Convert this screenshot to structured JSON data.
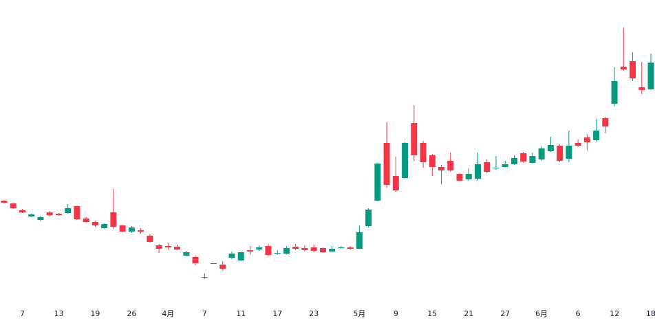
{
  "chart_data": {
    "type": "candlestick",
    "categories": [
      null,
      null,
      "7",
      null,
      null,
      null,
      "13",
      null,
      null,
      null,
      "19",
      null,
      null,
      null,
      "26",
      null,
      null,
      null,
      "4月",
      null,
      null,
      null,
      "7",
      null,
      null,
      null,
      "11",
      null,
      null,
      null,
      "17",
      null,
      null,
      null,
      "23",
      null,
      null,
      null,
      null,
      "5月",
      null,
      null,
      null,
      "9",
      null,
      null,
      null,
      "15",
      null,
      null,
      null,
      "21",
      null,
      null,
      null,
      "27",
      null,
      null,
      null,
      "6月",
      null,
      null,
      null,
      "6",
      null,
      null,
      null,
      "12",
      null,
      null,
      null,
      "18"
    ],
    "open": [
      178,
      174,
      164,
      155,
      150,
      161,
      159,
      160,
      170,
      152,
      147,
      138,
      161,
      142,
      133,
      135,
      127,
      113,
      112,
      111,
      98,
      96,
      66,
      86,
      85,
      95,
      91,
      106,
      107,
      112,
      101,
      101,
      111,
      109,
      110,
      109,
      104,
      109,
      110,
      108,
      141,
      178,
      262,
      214,
      211,
      291,
      262,
      244,
      227,
      236,
      217,
      209,
      210,
      234,
      225,
      227,
      231,
      247,
      233,
      238,
      250,
      258,
      239,
      262,
      270,
      266,
      298,
      319,
      373,
      381,
      343,
      340
    ],
    "high": [
      179,
      175,
      166,
      159,
      156,
      163,
      160,
      173,
      170,
      154,
      149,
      145,
      195,
      143,
      141,
      138,
      129,
      115,
      117,
      114,
      105,
      98,
      72,
      87,
      90,
      104,
      104,
      112,
      113,
      115,
      106,
      112,
      115,
      113,
      114,
      110,
      112,
      112,
      112,
      142,
      167,
      233,
      292,
      242,
      263,
      317,
      265,
      246,
      230,
      248,
      218,
      225,
      248,
      238,
      243,
      236,
      244,
      249,
      248,
      257,
      271,
      260,
      280,
      267,
      275,
      297,
      300,
      372,
      430,
      394,
      380,
      392
    ],
    "low": [
      174,
      166,
      160,
      154,
      148,
      155,
      156,
      159,
      150,
      146,
      140,
      137,
      137,
      132,
      131,
      130,
      117,
      102,
      107,
      106,
      97,
      84,
      64,
      86,
      76,
      93,
      90,
      99,
      105,
      97,
      99,
      100,
      106,
      104,
      103,
      102,
      103,
      108,
      106,
      108,
      139,
      177,
      197,
      191,
      210,
      236,
      226,
      214,
      202,
      220,
      206,
      207,
      207,
      218,
      223,
      226,
      230,
      233,
      232,
      236,
      249,
      234,
      234,
      256,
      251,
      264,
      276,
      315,
      367,
      352,
      333,
      339
    ],
    "close": [
      175,
      167,
      161,
      158,
      154,
      157,
      157,
      167,
      151,
      147,
      142,
      144,
      140,
      133,
      139,
      133,
      118,
      108,
      110,
      107,
      103,
      87,
      67,
      87,
      79,
      101,
      103,
      104,
      110,
      99,
      102,
      109,
      108,
      106,
      105,
      103,
      108,
      110,
      108,
      132,
      165,
      232,
      201,
      193,
      262,
      244,
      234,
      227,
      222,
      222,
      207,
      217,
      231,
      220,
      226,
      231,
      240,
      235,
      243,
      254,
      259,
      236,
      258,
      258,
      263,
      280,
      286,
      352,
      369,
      356,
      339,
      379
    ],
    "ylim": [
      0,
      470
    ],
    "up_color": "#089981",
    "down_color": "#f23645"
  }
}
